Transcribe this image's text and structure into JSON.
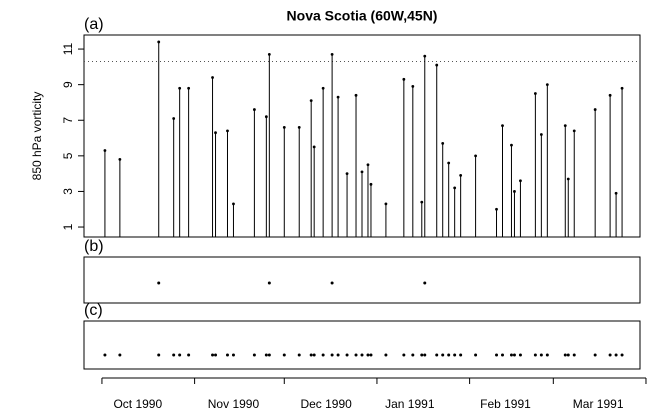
{
  "chart_data": [
    {
      "type": "stem",
      "panel_label": "(a)",
      "title": "Nova Scotia (60W,45N)",
      "y_label": "850 hPa vorticity",
      "x": [
        1,
        6,
        19,
        24,
        26,
        29,
        37,
        38,
        42,
        44,
        51,
        55,
        56,
        61,
        66,
        70,
        71,
        74,
        77,
        79,
        82,
        85,
        87,
        89,
        90,
        95,
        101,
        104,
        107,
        108,
        112,
        114,
        116,
        118,
        120,
        125,
        132,
        134,
        137,
        138,
        140,
        145,
        147,
        149,
        155,
        156,
        158,
        165,
        170,
        172,
        174
      ],
      "values": [
        5.3,
        4.8,
        11.4,
        7.1,
        8.8,
        8.8,
        9.4,
        6.3,
        6.4,
        2.3,
        7.6,
        7.2,
        10.7,
        6.6,
        6.6,
        8.1,
        5.5,
        8.8,
        10.7,
        8.3,
        4.0,
        8.4,
        4.1,
        4.5,
        3.4,
        2.3,
        9.3,
        8.9,
        2.4,
        10.6,
        10.1,
        5.7,
        4.6,
        3.2,
        3.9,
        5.0,
        2.0,
        6.7,
        5.6,
        3.0,
        3.6,
        8.5,
        6.2,
        9.0,
        6.7,
        3.7,
        6.4,
        7.6,
        8.4,
        2.9,
        8.8
      ],
      "threshold": 10.3,
      "color": "#000000",
      "xlim": [
        -6,
        180
      ],
      "ylim": [
        0.44,
        11.79
      ],
      "yticks": [
        1,
        3,
        5,
        7,
        9,
        11
      ]
    },
    {
      "type": "dot",
      "panel_label": "(b)",
      "x": [
        19,
        56,
        77,
        108
      ],
      "xlim": [
        -6,
        180
      ],
      "color": "#000000"
    },
    {
      "type": "dot",
      "panel_label": "(c)",
      "x": [
        1,
        6,
        19,
        24,
        26,
        29,
        37,
        38,
        42,
        44,
        51,
        55,
        56,
        61,
        66,
        70,
        71,
        74,
        77,
        79,
        82,
        85,
        87,
        89,
        90,
        95,
        101,
        104,
        107,
        108,
        112,
        114,
        116,
        118,
        120,
        125,
        132,
        134,
        137,
        138,
        140,
        145,
        147,
        149,
        155,
        156,
        158,
        165,
        170,
        172,
        174
      ],
      "xlim": [
        -6,
        180
      ],
      "color": "#000000",
      "xticks": [
        {
          "value": 12,
          "label": "Oct 1990"
        },
        {
          "value": 44,
          "label": "Nov 1990"
        },
        {
          "value": 75,
          "label": "Dec 1990"
        },
        {
          "value": 103,
          "label": "Jan 1991"
        },
        {
          "value": 135,
          "label": "Feb 1991"
        },
        {
          "value": 166,
          "label": "Mar 1991"
        }
      ],
      "month_boundaries": [
        0,
        31,
        61,
        92,
        123,
        151,
        182
      ]
    }
  ]
}
